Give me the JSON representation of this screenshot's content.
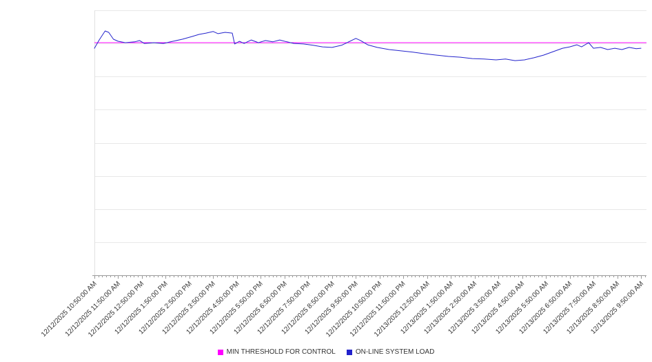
{
  "chart_data": {
    "type": "line",
    "title": "",
    "xlabel": "",
    "ylabel": "",
    "ylim": [
      0,
      100
    ],
    "grid": "horizontal",
    "gridline_divisions": 8,
    "legend_position": "bottom-center",
    "x_tick_labels": [
      "12/12/2025 10:50:00 AM",
      "12/12/2025 11:50:00 AM",
      "12/12/2025 12:50:00 PM",
      "12/12/2025 1:50:00 PM",
      "12/12/2025 2:50:00 PM",
      "12/12/2025 3:50:00 PM",
      "12/12/2025 4:50:00 PM",
      "12/12/2025 5:50:00 PM",
      "12/12/2025 6:50:00 PM",
      "12/12/2025 7:50:00 PM",
      "12/12/2025 8:50:00 PM",
      "12/12/2025 9:50:00 PM",
      "12/12/2025 10:50:00 PM",
      "12/12/2025 11:50:00 PM",
      "12/13/2025 12:50:00 AM",
      "12/13/2025 1:50:00 AM",
      "12/13/2025 2:50:00 AM",
      "12/13/2025 3:50:00 AM",
      "12/13/2025 4:50:00 AM",
      "12/13/2025 5:50:00 AM",
      "12/13/2025 6:50:00 AM",
      "12/13/2025 7:50:00 AM",
      "12/13/2025 8:50:00 AM",
      "12/13/2025 9:50:00 AM"
    ],
    "series": [
      {
        "name": "MIN THRESHOLD FOR CONTROL",
        "type": "constant-line",
        "color": "#ff00ff",
        "value": 87.8
      },
      {
        "name": "ON-LINE SYSTEM LOAD",
        "type": "line",
        "color": "#2222cc",
        "points": [
          [
            0,
            85.7
          ],
          [
            0.2,
            88.8
          ],
          [
            0.45,
            92.2
          ],
          [
            0.6,
            91.7
          ],
          [
            0.8,
            89.1
          ],
          [
            1,
            88.3
          ],
          [
            1.3,
            87.8
          ],
          [
            1.7,
            88.1
          ],
          [
            1.9,
            88.6
          ],
          [
            2.1,
            87.5
          ],
          [
            2.5,
            87.8
          ],
          [
            2.9,
            87.5
          ],
          [
            3.3,
            88.3
          ],
          [
            3.7,
            89.1
          ],
          [
            4.1,
            90.1
          ],
          [
            4.4,
            90.9
          ],
          [
            4.7,
            91.4
          ],
          [
            5,
            92
          ],
          [
            5.2,
            91.2
          ],
          [
            5.5,
            91.7
          ],
          [
            5.8,
            91.4
          ],
          [
            5.9,
            87.3
          ],
          [
            6.1,
            88.3
          ],
          [
            6.3,
            87.5
          ],
          [
            6.6,
            88.8
          ],
          [
            6.9,
            87.8
          ],
          [
            7.2,
            88.6
          ],
          [
            7.5,
            88.1
          ],
          [
            7.8,
            88.8
          ],
          [
            8.1,
            88.1
          ],
          [
            8.4,
            87.5
          ],
          [
            8.8,
            87.3
          ],
          [
            9.2,
            86.8
          ],
          [
            9.6,
            86.2
          ],
          [
            10,
            86
          ],
          [
            10.4,
            86.8
          ],
          [
            10.7,
            88.1
          ],
          [
            11,
            89.4
          ],
          [
            11.2,
            88.6
          ],
          [
            11.5,
            87
          ],
          [
            11.9,
            86
          ],
          [
            12.4,
            85.2
          ],
          [
            12.9,
            84.7
          ],
          [
            13.4,
            84.2
          ],
          [
            13.9,
            83.6
          ],
          [
            14.4,
            83.1
          ],
          [
            14.9,
            82.6
          ],
          [
            15.4,
            82.3
          ],
          [
            15.9,
            81.8
          ],
          [
            16.4,
            81.6
          ],
          [
            16.9,
            81.3
          ],
          [
            17.3,
            81.6
          ],
          [
            17.7,
            81
          ],
          [
            18.1,
            81.3
          ],
          [
            18.5,
            82.1
          ],
          [
            18.9,
            83.1
          ],
          [
            19.3,
            84.4
          ],
          [
            19.7,
            85.7
          ],
          [
            20,
            86.2
          ],
          [
            20.3,
            87
          ],
          [
            20.5,
            86.2
          ],
          [
            20.8,
            87.8
          ],
          [
            21,
            85.7
          ],
          [
            21.3,
            86
          ],
          [
            21.6,
            85.2
          ],
          [
            21.9,
            85.7
          ],
          [
            22.2,
            85.2
          ],
          [
            22.5,
            86
          ],
          [
            22.8,
            85.5
          ],
          [
            23,
            85.7
          ]
        ]
      }
    ],
    "colors": {
      "gridline": "#e8e8e8",
      "axis": "#999999",
      "left_axis": "#e0e0e0",
      "tick": "#999999",
      "x_label_text": "#333333",
      "legend_text": "#333333",
      "background": "#ffffff"
    }
  }
}
